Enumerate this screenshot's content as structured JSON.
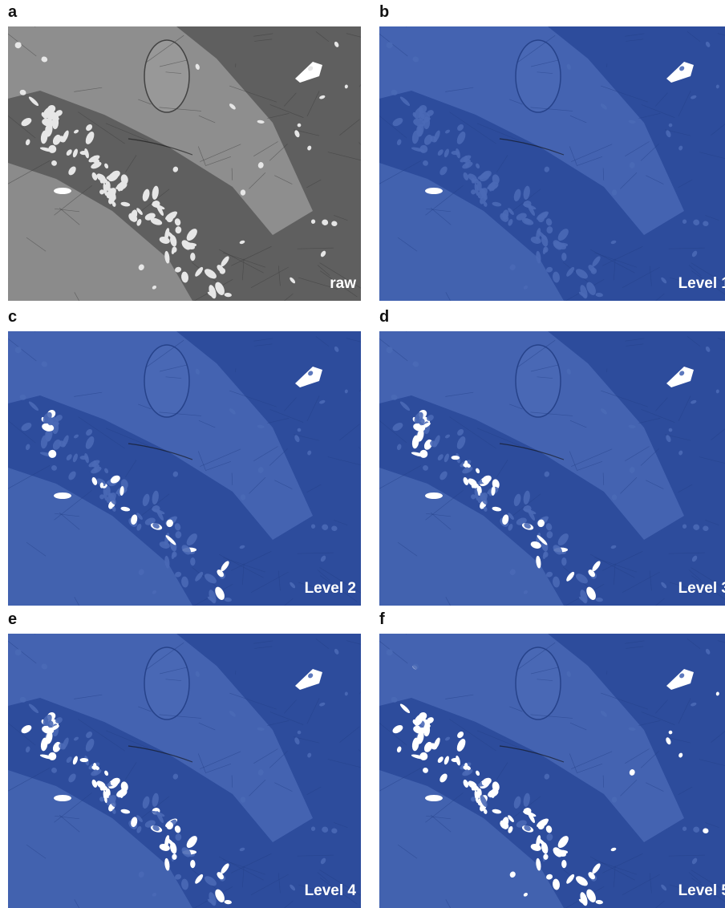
{
  "panels": [
    {
      "letter": "a",
      "label": "raw"
    },
    {
      "letter": "b",
      "label": "Level 1"
    },
    {
      "letter": "c",
      "label": "Level 2"
    },
    {
      "letter": "d",
      "label": "Level 3"
    },
    {
      "letter": "e",
      "label": "Level 4"
    },
    {
      "letter": "f",
      "label": "Level 5"
    }
  ]
}
